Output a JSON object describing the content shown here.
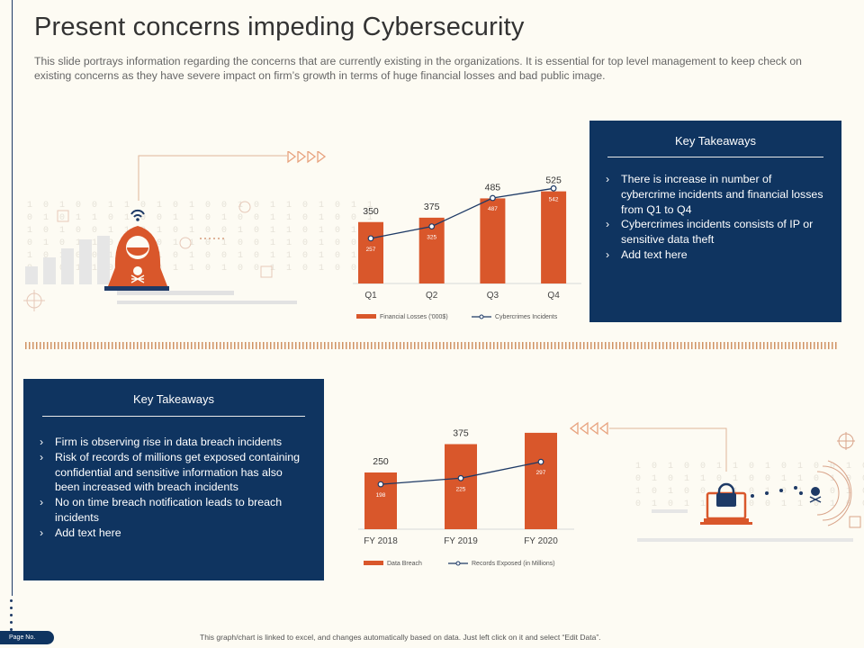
{
  "title": "Present concerns impeding Cybersecurity",
  "subtitle": "This slide portrays information regarding the concerns that are currently existing in the organizations. It is essential for top level management to keep check on existing concerns as they have severe impact on firm’s growth in terms of huge financial losses and bad public image.",
  "takeaways_top": {
    "title": "Key Takeaways",
    "items": [
      "There is increase in number of cybercrime incidents and financial losses from Q1 to Q4",
      "Cybercrimes incidents consists  of IP or sensitive data theft",
      "Add text here"
    ]
  },
  "takeaways_bottom": {
    "title": "Key Takeaways",
    "items": [
      "Firm is observing rise in data breach incidents",
      "Risk of records of millions  get exposed containing confidential and sensitive information has also been increased with breach incidents",
      "No on time breach notification leads to breach incidents",
      "Add text here"
    ]
  },
  "footer": {
    "page_label": "Page No.",
    "note": "This graph/chart is linked to excel, and changes automatically based on data. Just left click on it and select “Edit Data”."
  },
  "colors": {
    "bar": "#d9572b",
    "line": "#1e3a66",
    "panel": "#0f3460"
  },
  "chart_data": [
    {
      "type": "bar",
      "categories": [
        "Q1",
        "Q2",
        "Q3",
        "Q4"
      ],
      "series": [
        {
          "name": "Financial Losses  ('000$)",
          "kind": "bar",
          "values": [
            350,
            375,
            485,
            525
          ]
        },
        {
          "name": "Cybercrimes Incidents",
          "kind": "line",
          "values": [
            257,
            325,
            487,
            542
          ]
        }
      ],
      "ylim": [
        0,
        600
      ],
      "title": "",
      "xlabel": "",
      "ylabel": ""
    },
    {
      "type": "bar",
      "categories": [
        "FY 2018",
        "FY 2019",
        "FY 2020"
      ],
      "series": [
        {
          "name": "Data Breach",
          "kind": "bar",
          "values": [
            250,
            375,
            425
          ]
        },
        {
          "name": "Records Exposed (in Millions)",
          "kind": "line",
          "values": [
            198,
            225,
            297
          ]
        }
      ],
      "ylim": [
        0,
        500
      ],
      "title": "",
      "xlabel": "",
      "ylabel": ""
    }
  ]
}
